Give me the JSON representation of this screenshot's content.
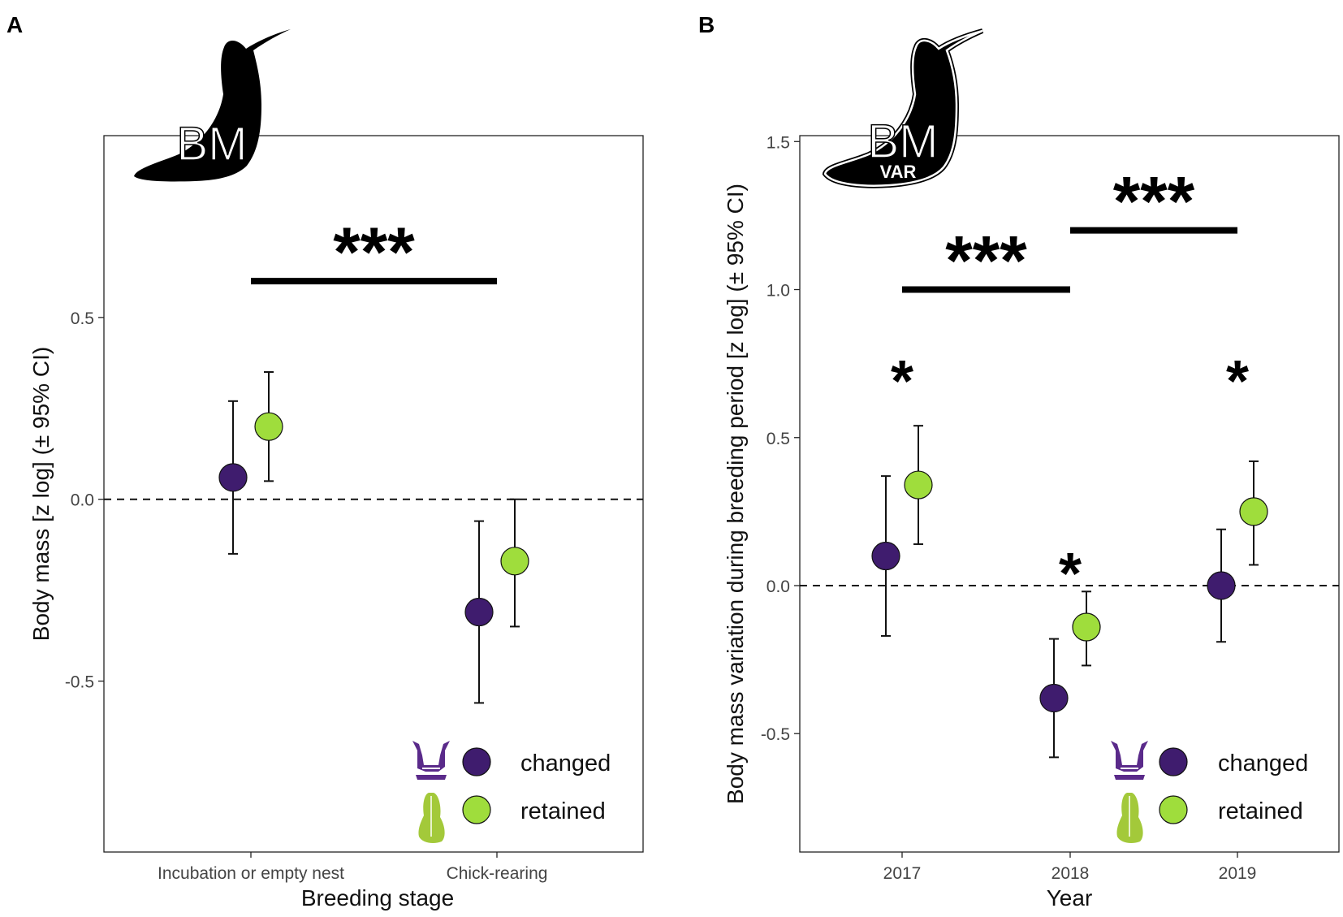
{
  "panels": [
    {
      "panel_label": "A",
      "icon_text": "BM",
      "icon_subtext": "",
      "chart_data": {
        "type": "scatter",
        "xlabel": "Breeding stage",
        "ylabel": "Body mass [z log] (± 95% CI)",
        "categories": [
          "Incubation or empty nest",
          "Chick-rearing"
        ],
        "ylim": [
          -0.97,
          1.0
        ],
        "yticks": [
          -0.5,
          0.0,
          0.5
        ],
        "ytick_labels": [
          "-0.5",
          "0.0",
          "0.5"
        ],
        "reference_line": 0.0,
        "series": [
          {
            "name": "changed",
            "color": "#3f1c6e",
            "values": [
              0.06,
              -0.31
            ],
            "ci_low": [
              -0.15,
              -0.56
            ],
            "ci_high": [
              0.27,
              -0.06
            ]
          },
          {
            "name": "retained",
            "color": "#9fdd3c",
            "values": [
              0.2,
              -0.17
            ],
            "ci_low": [
              0.05,
              -0.35
            ],
            "ci_high": [
              0.35,
              0.0
            ]
          }
        ],
        "significance_bars": [
          {
            "from": 0,
            "to": 1,
            "y": 0.6,
            "label": "***"
          }
        ],
        "point_annotations": [],
        "legend": {
          "position": "bottom-right",
          "items": [
            "changed",
            "retained"
          ]
        }
      }
    },
    {
      "panel_label": "B",
      "icon_text": "BM",
      "icon_subtext": "VAR",
      "chart_data": {
        "type": "scatter",
        "xlabel": "Year",
        "ylabel": "Body mass variation during breeding period [z log] (± 95% CI)",
        "categories": [
          "2017",
          "2018",
          "2019"
        ],
        "ylim": [
          -0.9,
          1.52
        ],
        "yticks": [
          -0.5,
          0.0,
          0.5,
          1.0,
          1.5
        ],
        "ytick_labels": [
          "-0.5",
          "0.0",
          "0.5",
          "1.0",
          "1.5"
        ],
        "reference_line": 0.0,
        "series": [
          {
            "name": "changed",
            "color": "#3f1c6e",
            "values": [
              0.1,
              -0.38,
              0.0
            ],
            "ci_low": [
              -0.17,
              -0.58,
              -0.19
            ],
            "ci_high": [
              0.37,
              -0.18,
              0.19
            ]
          },
          {
            "name": "retained",
            "color": "#9fdd3c",
            "values": [
              0.34,
              -0.14,
              0.25
            ],
            "ci_low": [
              0.14,
              -0.27,
              0.07
            ],
            "ci_high": [
              0.54,
              -0.02,
              0.42
            ]
          }
        ],
        "significance_bars": [
          {
            "from": 0,
            "to": 1,
            "y": 1.0,
            "label": "***"
          },
          {
            "from": 1,
            "to": 2,
            "y": 1.2,
            "label": "***"
          }
        ],
        "point_annotations": [
          {
            "category": 0,
            "y": 0.76,
            "label": "*"
          },
          {
            "category": 1,
            "y": 0.11,
            "label": "*"
          },
          {
            "category": 2,
            "y": 0.76,
            "label": "*"
          }
        ],
        "legend": {
          "position": "bottom-right",
          "items": [
            "changed",
            "retained"
          ]
        }
      }
    }
  ]
}
